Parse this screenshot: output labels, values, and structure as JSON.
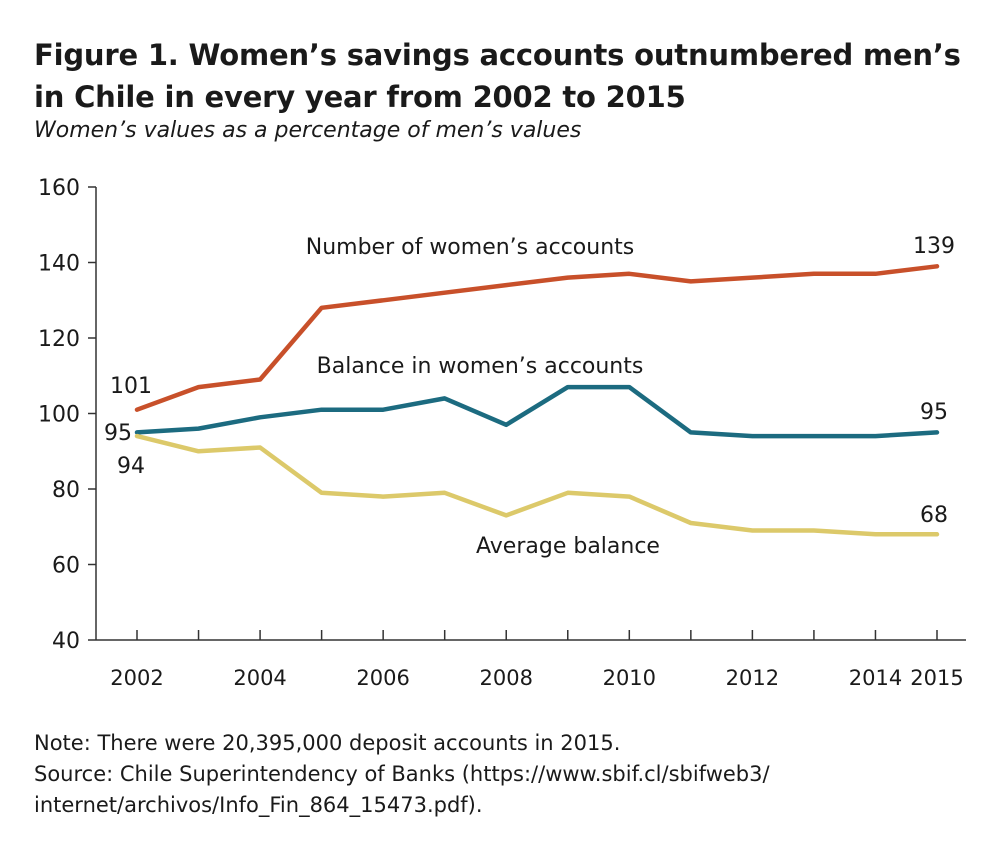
{
  "figure": {
    "title": "Figure 1. Women’s savings accounts outnumbered men’s in Chile in every year from 2002 to 2015",
    "subtitle": "Women’s values as a percentage of men’s values",
    "note": "Note: There were 20,395,000 deposit accounts in 2015.",
    "source_line1": "Source: Chile Superintendency of Banks (https://www.sbif.cl/sbifweb3/",
    "source_line2": "internet/archivos/Info_Fin_864_15473.pdf)."
  },
  "chart_data": {
    "type": "line",
    "x": [
      2002,
      2003,
      2004,
      2005,
      2006,
      2007,
      2008,
      2009,
      2010,
      2011,
      2012,
      2013,
      2014,
      2015
    ],
    "x_tick_labels": [
      "2002",
      "2004",
      "2006",
      "2008",
      "2010",
      "2012",
      "2014",
      "2015"
    ],
    "y_tick_labels": [
      "40",
      "60",
      "80",
      "100",
      "120",
      "140",
      "160"
    ],
    "ylim": [
      40,
      160
    ],
    "xlim": [
      2002,
      2015
    ],
    "grid": false,
    "series": [
      {
        "name": "Number of women’s accounts",
        "color": "#c8502a",
        "values": [
          101,
          107,
          109,
          128,
          130,
          132,
          134,
          136,
          137,
          135,
          136,
          137,
          137,
          139
        ],
        "start_label": "101",
        "end_label": "139"
      },
      {
        "name": "Balance in women’s accounts",
        "color": "#1c6b80",
        "values": [
          95,
          96,
          99,
          101,
          101,
          104,
          97,
          107,
          107,
          95,
          94,
          94,
          94,
          95
        ],
        "start_label": "95",
        "end_label": "95"
      },
      {
        "name": "Average balance",
        "color": "#dcc96a",
        "values": [
          94,
          90,
          91,
          79,
          78,
          79,
          73,
          79,
          78,
          71,
          69,
          69,
          68,
          68
        ],
        "start_label": "94",
        "end_label": "68"
      }
    ]
  }
}
